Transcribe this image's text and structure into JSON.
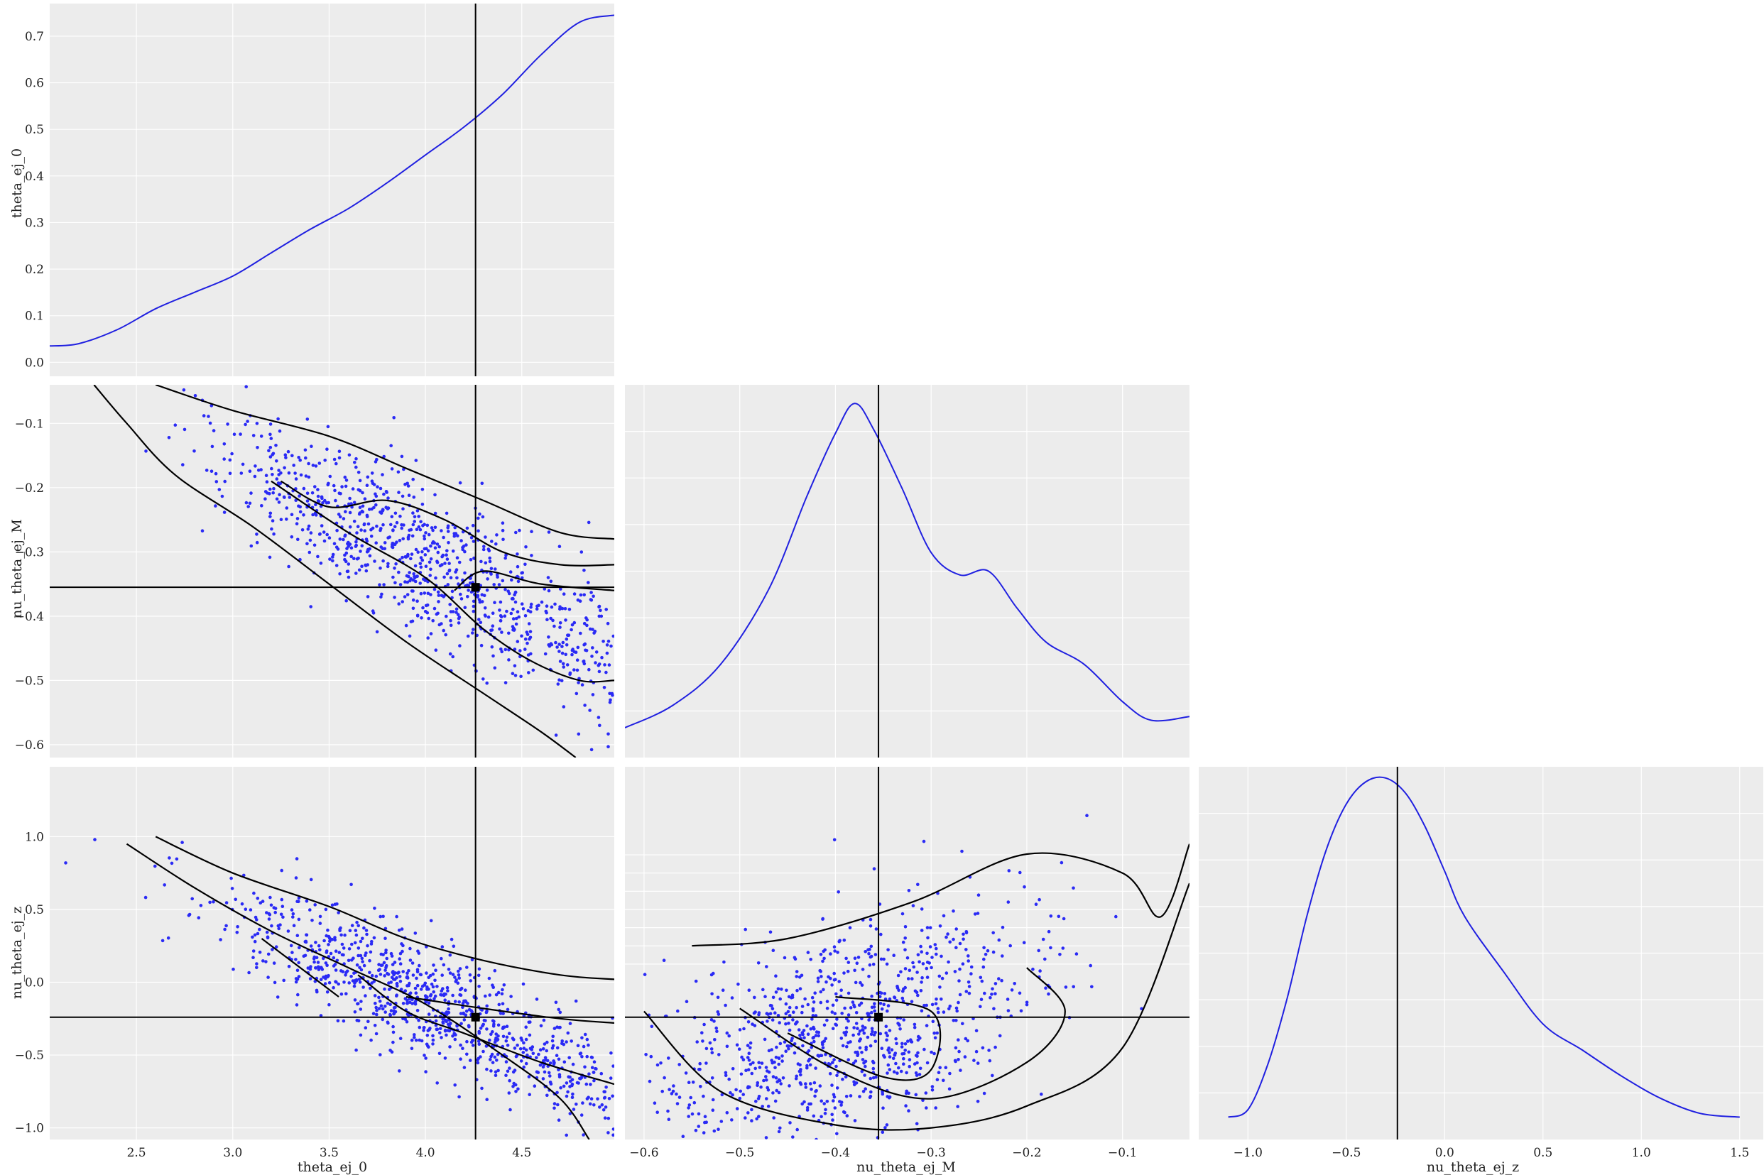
{
  "colors": {
    "panel_bg": "#ececec",
    "grid": "#ffffff",
    "kde_line": "#2020e0",
    "scatter_point": "#2a2af5",
    "contour": "#000000",
    "reference_line": "#000000"
  },
  "reference_point": {
    "theta_ej_0": 4.26,
    "nu_theta_ej_M": -0.355,
    "nu_theta_ej_z": -0.24
  },
  "chart_data": [
    {
      "type": "line",
      "panel": "diag-theta_ej_0",
      "title": "",
      "xlabel": "",
      "ylabel": "theta_ej_0",
      "xlim": [
        2.05,
        4.98
      ],
      "ylim": [
        -0.03,
        0.77
      ],
      "yticks": [
        0.0,
        0.1,
        0.2,
        0.3,
        0.4,
        0.5,
        0.6,
        0.7
      ],
      "ytick_labels": [
        "0.0",
        "0.1",
        "0.2",
        "0.3",
        "0.4",
        "0.5",
        "0.6",
        "0.7"
      ],
      "x": [
        2.05,
        2.2,
        2.4,
        2.6,
        2.8,
        3.0,
        3.2,
        3.4,
        3.6,
        3.8,
        4.0,
        4.2,
        4.4,
        4.6,
        4.8,
        4.98
      ],
      "y": [
        0.035,
        0.04,
        0.07,
        0.115,
        0.15,
        0.185,
        0.235,
        0.285,
        0.33,
        0.385,
        0.445,
        0.505,
        0.575,
        0.66,
        0.73,
        0.745
      ],
      "vline": 4.26
    },
    {
      "type": "scatter",
      "panel": "nu_theta_ej_M-vs-theta_ej_0",
      "title": "",
      "xlabel": "",
      "ylabel": "nu_theta_ej_M",
      "xlim": [
        2.05,
        4.98
      ],
      "ylim": [
        -0.62,
        -0.04
      ],
      "yticks": [
        -0.1,
        -0.2,
        -0.3,
        -0.4,
        -0.5,
        -0.6
      ],
      "ytick_labels": [
        "−0.1",
        "−0.2",
        "−0.3",
        "−0.4",
        "−0.5",
        "−0.6"
      ],
      "points": {
        "n": 950,
        "x_mean": 4.15,
        "x_sd": 0.55,
        "x_min": 2.05,
        "x_max": 4.98,
        "slope": -0.165,
        "x_ref": 4.26,
        "y_ref": -0.36,
        "y_sd": 0.058,
        "y_min": -0.62,
        "y_max": -0.04
      },
      "contours": [
        [
          [
            2.28,
            -0.04
          ],
          [
            2.45,
            -0.1
          ],
          [
            2.7,
            -0.18
          ],
          [
            3.1,
            -0.26
          ],
          [
            3.5,
            -0.35
          ],
          [
            3.9,
            -0.44
          ],
          [
            4.3,
            -0.52
          ],
          [
            4.6,
            -0.58
          ],
          [
            4.78,
            -0.62
          ]
        ],
        [
          [
            2.6,
            -0.04
          ],
          [
            3.0,
            -0.08
          ],
          [
            3.5,
            -0.12
          ],
          [
            3.9,
            -0.17
          ],
          [
            4.3,
            -0.22
          ],
          [
            4.7,
            -0.27
          ],
          [
            4.98,
            -0.28
          ]
        ],
        [
          [
            3.2,
            -0.19
          ],
          [
            3.6,
            -0.27
          ],
          [
            4.0,
            -0.34
          ],
          [
            4.3,
            -0.42
          ],
          [
            4.55,
            -0.47
          ],
          [
            4.8,
            -0.5
          ],
          [
            4.98,
            -0.5
          ]
        ],
        [
          [
            3.25,
            -0.19
          ],
          [
            3.5,
            -0.23
          ],
          [
            3.8,
            -0.22
          ],
          [
            4.1,
            -0.25
          ],
          [
            4.4,
            -0.3
          ],
          [
            4.7,
            -0.32
          ],
          [
            4.98,
            -0.32
          ]
        ],
        [
          [
            4.15,
            -0.36
          ],
          [
            4.3,
            -0.33
          ],
          [
            4.6,
            -0.35
          ],
          [
            4.98,
            -0.36
          ]
        ]
      ],
      "hline": -0.355,
      "vline": 4.26,
      "marker": [
        4.26,
        -0.355
      ]
    },
    {
      "type": "line",
      "panel": "diag-nu_theta_ej_M",
      "title": "",
      "xlabel": "",
      "ylabel": "",
      "xlim": [
        -0.62,
        -0.03
      ],
      "ylim": [
        0,
        1
      ],
      "x": [
        -0.62,
        -0.57,
        -0.52,
        -0.47,
        -0.43,
        -0.4,
        -0.38,
        -0.36,
        -0.33,
        -0.3,
        -0.27,
        -0.24,
        -0.21,
        -0.18,
        -0.14,
        -0.1,
        -0.07,
        -0.03
      ],
      "y": [
        0.08,
        0.14,
        0.25,
        0.45,
        0.7,
        0.87,
        0.95,
        0.88,
        0.72,
        0.55,
        0.49,
        0.5,
        0.4,
        0.31,
        0.25,
        0.15,
        0.1,
        0.11
      ],
      "vline": -0.355
    },
    {
      "type": "scatter",
      "panel": "nu_theta_ej_z-vs-theta_ej_0",
      "title": "",
      "xlabel": "theta_ej_0",
      "ylabel": "nu_theta_ej_z",
      "xlim": [
        2.05,
        4.98
      ],
      "ylim": [
        -1.08,
        1.48
      ],
      "xticks": [
        2.5,
        3.0,
        3.5,
        4.0,
        4.5
      ],
      "xtick_labels": [
        "2.5",
        "3.0",
        "3.5",
        "4.0",
        "4.5"
      ],
      "yticks": [
        1.0,
        0.5,
        0.0,
        -0.5,
        -1.0
      ],
      "ytick_labels": [
        "1.0",
        "0.5",
        "0.0",
        "−0.5",
        "−1.0"
      ],
      "points": {
        "n": 950,
        "x_mean": 4.15,
        "x_sd": 0.55,
        "x_min": 2.05,
        "x_max": 4.98,
        "slope": -0.6,
        "x_ref": 4.26,
        "y_ref": -0.3,
        "y_sd": 0.2,
        "y_min": -1.08,
        "y_max": 1.48
      },
      "contours": [
        [
          [
            2.45,
            0.95
          ],
          [
            2.8,
            0.65
          ],
          [
            3.2,
            0.35
          ],
          [
            3.6,
            0.1
          ],
          [
            4.0,
            -0.15
          ],
          [
            4.4,
            -0.5
          ],
          [
            4.7,
            -0.8
          ],
          [
            4.85,
            -1.08
          ]
        ],
        [
          [
            2.6,
            1.0
          ],
          [
            3.0,
            0.75
          ],
          [
            3.5,
            0.52
          ],
          [
            3.9,
            0.3
          ],
          [
            4.3,
            0.15
          ],
          [
            4.7,
            0.05
          ],
          [
            4.98,
            0.02
          ]
        ],
        [
          [
            3.15,
            0.3
          ],
          [
            3.3,
            0.15
          ],
          [
            3.55,
            -0.1
          ]
        ],
        [
          [
            3.65,
            0.05
          ],
          [
            3.9,
            -0.2
          ],
          [
            4.2,
            -0.35
          ],
          [
            4.6,
            -0.55
          ],
          [
            4.98,
            -0.7
          ]
        ],
        [
          [
            3.9,
            -0.1
          ],
          [
            4.3,
            -0.18
          ],
          [
            4.7,
            -0.25
          ],
          [
            4.98,
            -0.28
          ]
        ]
      ],
      "hline": -0.24,
      "vline": 4.26,
      "marker": [
        4.26,
        -0.24
      ]
    },
    {
      "type": "scatter",
      "panel": "nu_theta_ej_z-vs-nu_theta_ej_M",
      "title": "",
      "xlabel": "nu_theta_ej_M",
      "ylabel": "",
      "xlim": [
        -0.62,
        -0.03
      ],
      "ylim": [
        -1.08,
        1.48
      ],
      "xticks": [
        -0.6,
        -0.5,
        -0.4,
        -0.3,
        -0.2,
        -0.1
      ],
      "xtick_labels": [
        "−0.6",
        "−0.5",
        "−0.4",
        "−0.3",
        "−0.2",
        "−0.1"
      ],
      "points": {
        "n": 950,
        "x_mean": -0.36,
        "x_sd": 0.1,
        "x_min": -0.6,
        "x_max": -0.03,
        "slope": 2.2,
        "x_ref": -0.36,
        "y_ref": -0.3,
        "y_sd": 0.35,
        "y_min": -1.08,
        "y_max": 1.48
      },
      "contours": [
        [
          [
            -0.55,
            0.25
          ],
          [
            -0.45,
            0.3
          ],
          [
            -0.32,
            0.55
          ],
          [
            -0.2,
            0.88
          ],
          [
            -0.1,
            0.75
          ],
          [
            -0.06,
            0.45
          ],
          [
            -0.03,
            0.95
          ]
        ],
        [
          [
            -0.6,
            -0.2
          ],
          [
            -0.52,
            -0.75
          ],
          [
            -0.4,
            -0.98
          ],
          [
            -0.3,
            -1.0
          ],
          [
            -0.2,
            -0.85
          ],
          [
            -0.1,
            -0.45
          ],
          [
            -0.03,
            0.68
          ]
        ],
        [
          [
            -0.5,
            -0.18
          ],
          [
            -0.4,
            -0.6
          ],
          [
            -0.3,
            -0.8
          ],
          [
            -0.2,
            -0.55
          ],
          [
            -0.16,
            -0.2
          ],
          [
            -0.2,
            0.1
          ]
        ],
        [
          [
            -0.45,
            -0.35
          ],
          [
            -0.35,
            -0.65
          ],
          [
            -0.3,
            -0.6
          ],
          [
            -0.3,
            -0.2
          ],
          [
            -0.4,
            -0.1
          ]
        ]
      ],
      "hline": -0.24,
      "vline": -0.355,
      "marker": [
        -0.355,
        -0.24
      ]
    },
    {
      "type": "line",
      "panel": "diag-nu_theta_ej_z",
      "title": "",
      "xlabel": "nu_theta_ej_z",
      "ylabel": "",
      "xlim": [
        -1.25,
        1.62
      ],
      "ylim": [
        0,
        1
      ],
      "xticks": [
        -1.0,
        -0.5,
        0.0,
        0.5,
        1.0,
        1.5
      ],
      "xtick_labels": [
        "−1.0",
        "−0.5",
        "0.0",
        "0.5",
        "1.0",
        "1.5"
      ],
      "x": [
        -1.1,
        -1.0,
        -0.9,
        -0.8,
        -0.7,
        -0.6,
        -0.5,
        -0.4,
        -0.3,
        -0.2,
        -0.1,
        0.0,
        0.1,
        0.3,
        0.5,
        0.7,
        0.9,
        1.1,
        1.3,
        1.5
      ],
      "y": [
        0.06,
        0.08,
        0.2,
        0.38,
        0.6,
        0.78,
        0.9,
        0.96,
        0.97,
        0.93,
        0.84,
        0.72,
        0.6,
        0.45,
        0.31,
        0.24,
        0.17,
        0.11,
        0.07,
        0.06
      ],
      "vline": -0.24
    }
  ]
}
